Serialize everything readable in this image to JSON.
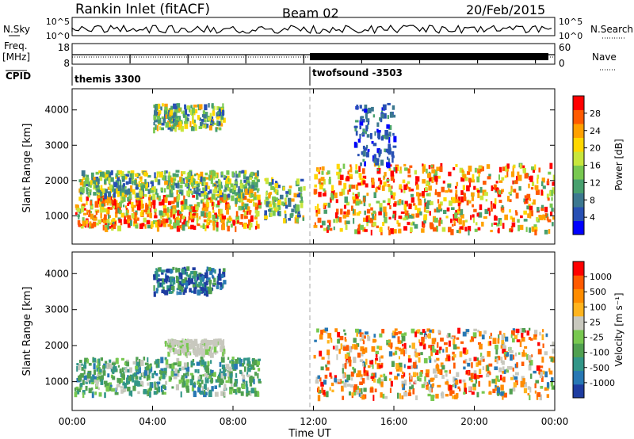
{
  "header": {
    "station": "Rankin Inlet (fitACF)",
    "beam": "Beam 02",
    "date": "20/Feb/2015"
  },
  "noise_panel": {
    "left_label": "N.Sky",
    "right_label": "N.Search",
    "left_ticks": [
      "10^5",
      "10^0"
    ],
    "right_ticks": [
      "10^5",
      "10^0"
    ]
  },
  "freq_panel": {
    "left_label_1": "Freq.",
    "left_label_2": "[MHz]",
    "right_label": "Nave",
    "left_ticks": [
      "18",
      "8"
    ],
    "right_ticks": [
      "60",
      "0"
    ]
  },
  "cpid": {
    "label": "CPID",
    "programs": [
      {
        "name": "themis 3300",
        "start_hour": 0
      },
      {
        "name": "twofsound -3503",
        "start_hour": 12
      }
    ]
  },
  "chart_data": [
    {
      "type": "heatmap",
      "name": "power",
      "xlabel": "",
      "ylabel": "Slant Range [km]",
      "xlim": [
        0,
        24
      ],
      "ylim": [
        200,
        4600
      ],
      "yticks": [
        1000,
        2000,
        3000,
        4000
      ],
      "colorbar": {
        "label": "Power [dB]",
        "ticks": [
          "28",
          "24",
          "20",
          "16",
          "12",
          "8",
          "4"
        ],
        "colors": [
          "#0000ff",
          "#2850b4",
          "#3c7890",
          "#48a06e",
          "#78c850",
          "#c8e63c",
          "#ffd700",
          "#ffa000",
          "#ff5a00",
          "#ff0000"
        ]
      },
      "echo_regions": [
        {
          "t": [
            0.1,
            9.3
          ],
          "r": [
            700,
            1600
          ],
          "level": "high"
        },
        {
          "t": [
            0.3,
            9.2
          ],
          "r": [
            1600,
            2300
          ],
          "level": "mid"
        },
        {
          "t": [
            4.0,
            7.5
          ],
          "r": [
            3500,
            4200
          ],
          "level": "mid"
        },
        {
          "t": [
            9.5,
            11.5
          ],
          "r": [
            900,
            2100
          ],
          "level": "mid"
        },
        {
          "t": [
            12.0,
            24.0
          ],
          "r": [
            600,
            2500
          ],
          "level": "high"
        },
        {
          "t": [
            14.0,
            16.0
          ],
          "r": [
            2500,
            4200
          ],
          "level": "low"
        }
      ]
    },
    {
      "type": "heatmap",
      "name": "velocity",
      "xlabel": "Time UT",
      "ylabel": "Slant Range [km]",
      "xlim": [
        0,
        24
      ],
      "ylim": [
        200,
        4600
      ],
      "xticks": [
        "00:00",
        "04:00",
        "08:00",
        "12:00",
        "16:00",
        "20:00",
        "00:00"
      ],
      "yticks": [
        1000,
        2000,
        3000,
        4000
      ],
      "colorbar": {
        "label": "Velocity [m s⁻¹]",
        "ticks": [
          "1000",
          "500",
          "100",
          "25",
          "-25",
          "-100",
          "-500",
          "-1000"
        ],
        "colors": [
          "#1e3ca0",
          "#2878b4",
          "#329688",
          "#50a050",
          "#78c850",
          "#c8c8be",
          "#ffb41e",
          "#ff8c00",
          "#ff5a00",
          "#ff0000"
        ]
      },
      "echo_regions": [
        {
          "t": [
            0.1,
            9.3
          ],
          "r": [
            700,
            1700
          ],
          "level": "green"
        },
        {
          "t": [
            4.5,
            7.5
          ],
          "r": [
            1800,
            2200
          ],
          "level": "grey"
        },
        {
          "t": [
            4.0,
            7.5
          ],
          "r": [
            3500,
            4200
          ],
          "level": "blue"
        },
        {
          "t": [
            12.0,
            24.0
          ],
          "r": [
            600,
            2500
          ],
          "level": "mixed"
        }
      ]
    }
  ]
}
